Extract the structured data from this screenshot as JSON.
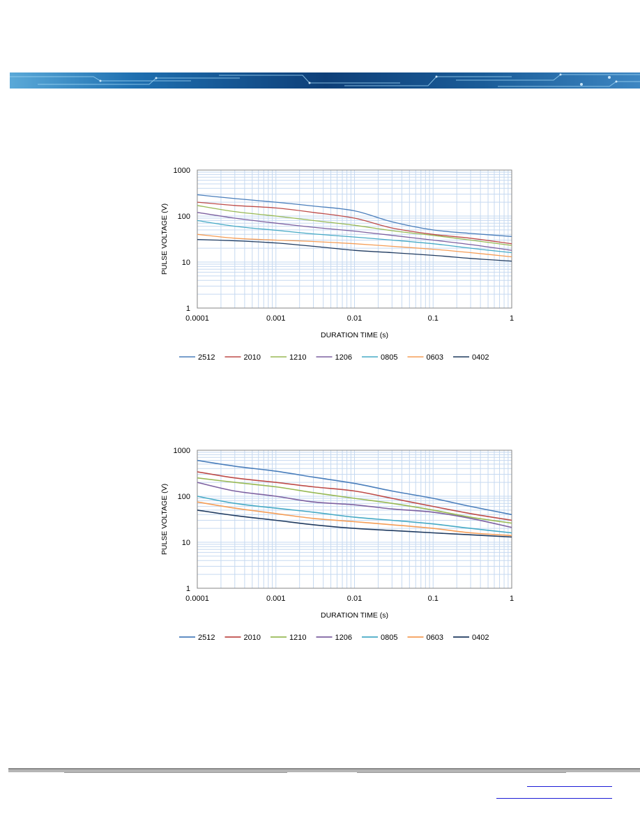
{
  "colors": {
    "2512": "#4a7ebb",
    "2010": "#be4b48",
    "1210": "#98b954",
    "1206": "#7d60a0",
    "0805": "#46aac5",
    "0603": "#f59d56",
    "0402": "#1f3a5f",
    "grid": "#c6d9f0",
    "axis": "#868686"
  },
  "chart_data": [
    {
      "type": "line",
      "xscale": "log",
      "yscale": "log",
      "xlim": [
        0.0001,
        1
      ],
      "ylim": [
        1,
        1000
      ],
      "xlabel": "DURATION TIME (s)",
      "ylabel": "PULSE VOLTAGE (V)",
      "xticks": [
        "0.0001",
        "0.001",
        "0.01",
        "0.1",
        "1"
      ],
      "yticks": [
        "1",
        "10",
        "100",
        "1000"
      ],
      "grid": true,
      "legend_position": "bottom",
      "x": [
        0.0001,
        0.0003,
        0.001,
        0.003,
        0.01,
        0.03,
        0.1,
        0.3,
        1
      ],
      "series": [
        {
          "name": "2512",
          "values": [
            290,
            240,
            200,
            165,
            130,
            75,
            50,
            42,
            36
          ]
        },
        {
          "name": "2010",
          "values": [
            200,
            170,
            150,
            120,
            90,
            55,
            40,
            33,
            25
          ]
        },
        {
          "name": "1210",
          "values": [
            170,
            125,
            100,
            80,
            63,
            48,
            38,
            30,
            23
          ]
        },
        {
          "name": "1206",
          "values": [
            120,
            90,
            70,
            57,
            47,
            38,
            30,
            24,
            18
          ]
        },
        {
          "name": "0805",
          "values": [
            80,
            60,
            49,
            41,
            35,
            30,
            25,
            20,
            16
          ]
        },
        {
          "name": "0603",
          "values": [
            40,
            33,
            30,
            28,
            25,
            22,
            19,
            16,
            13
          ]
        },
        {
          "name": "0402",
          "values": [
            31,
            29,
            26,
            22,
            18,
            16,
            14,
            12,
            10.5
          ]
        }
      ]
    },
    {
      "type": "line",
      "xscale": "log",
      "yscale": "log",
      "xlim": [
        0.0001,
        1
      ],
      "ylim": [
        1,
        1000
      ],
      "xlabel": "DURATION TIME (s)",
      "ylabel": "PULSE VOLTAGE (V)",
      "xticks": [
        "0.0001",
        "0.001",
        "0.01",
        "0.1",
        "1"
      ],
      "yticks": [
        "1",
        "10",
        "100",
        "1000"
      ],
      "grid": true,
      "legend_position": "bottom",
      "x": [
        0.0001,
        0.0003,
        0.001,
        0.003,
        0.01,
        0.03,
        0.1,
        0.3,
        1
      ],
      "series": [
        {
          "name": "2512",
          "values": [
            600,
            450,
            350,
            260,
            190,
            130,
            90,
            60,
            40
          ]
        },
        {
          "name": "2010",
          "values": [
            340,
            250,
            200,
            160,
            130,
            90,
            60,
            42,
            30
          ]
        },
        {
          "name": "1210",
          "values": [
            250,
            200,
            160,
            120,
            90,
            70,
            50,
            35,
            26
          ]
        },
        {
          "name": "1206",
          "values": [
            200,
            130,
            100,
            75,
            65,
            53,
            45,
            33,
            21
          ]
        },
        {
          "name": "0805",
          "values": [
            100,
            70,
            55,
            45,
            35,
            30,
            25,
            20,
            16
          ]
        },
        {
          "name": "0603",
          "values": [
            75,
            55,
            42,
            33,
            28,
            24,
            20,
            16,
            14
          ]
        },
        {
          "name": "0402",
          "values": [
            50,
            38,
            30,
            24,
            20,
            18,
            16,
            14.5,
            13
          ]
        }
      ]
    }
  ]
}
